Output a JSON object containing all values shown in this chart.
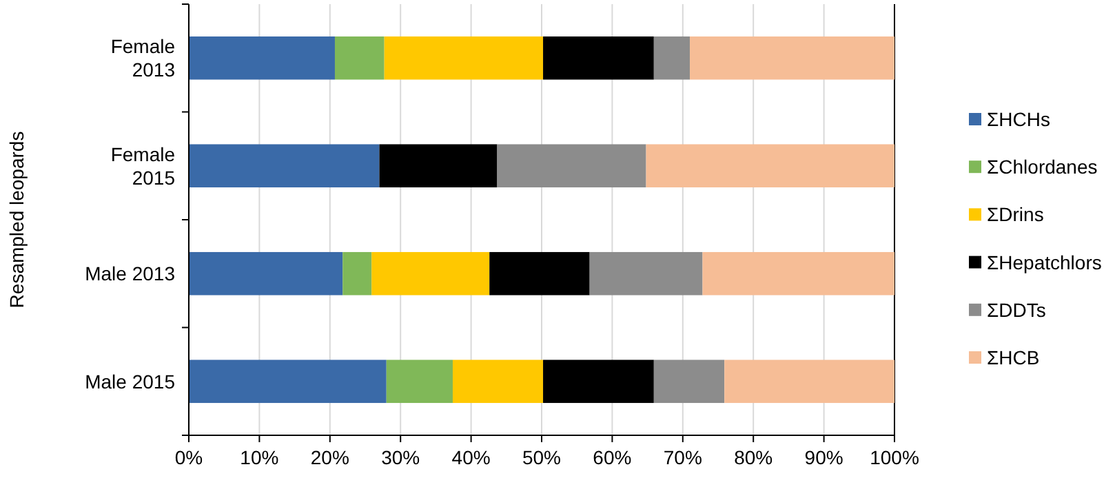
{
  "chart_data": {
    "type": "bar",
    "orientation": "horizontal",
    "stacked": true,
    "ylabel": "Resampled leopards",
    "categories": [
      "Female 2013",
      "Female 2015",
      "Male 2013",
      "Male 2015"
    ],
    "series": [
      {
        "name": "ΣHCHs",
        "color": "#3a6aa8",
        "values": [
          20.7,
          27.0,
          21.8,
          28.0
        ]
      },
      {
        "name": "ΣChlordanes",
        "color": "#80b858",
        "values": [
          7.0,
          0,
          4.1,
          9.4
        ]
      },
      {
        "name": "ΣDrins",
        "color": "#ffc800",
        "values": [
          22.5,
          0,
          16.7,
          12.8
        ]
      },
      {
        "name": "ΣHepatchlors",
        "color": "#000000",
        "values": [
          15.7,
          16.7,
          14.2,
          15.7
        ]
      },
      {
        "name": "ΣDDTs",
        "color": "#8c8c8c",
        "values": [
          5.1,
          21.1,
          16.0,
          10.0
        ]
      },
      {
        "name": "ΣHCB",
        "color": "#f6bd96",
        "values": [
          29.0,
          35.2,
          27.2,
          24.1
        ]
      }
    ],
    "xlim": [
      0,
      100
    ],
    "xticks": [
      {
        "value": 0,
        "label": "0%"
      },
      {
        "value": 10,
        "label": "10%"
      },
      {
        "value": 20,
        "label": "20%"
      },
      {
        "value": 30,
        "label": "30%"
      },
      {
        "value": 40,
        "label": "40%"
      },
      {
        "value": 50,
        "label": "50%"
      },
      {
        "value": 60,
        "label": "60%"
      },
      {
        "value": 70,
        "label": "70%"
      },
      {
        "value": 80,
        "label": "80%"
      },
      {
        "value": 90,
        "label": "90%"
      },
      {
        "value": 100,
        "label": "100%"
      }
    ],
    "grid": "x",
    "legend": "right"
  }
}
